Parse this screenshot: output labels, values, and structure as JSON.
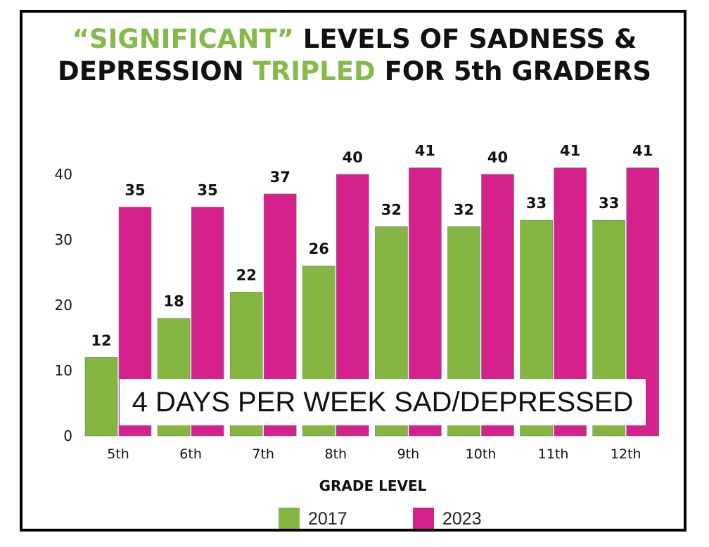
{
  "title": {
    "line1": [
      {
        "text": "“SIGNIFICANT”",
        "highlight": true
      },
      {
        "text": " LEVELS OF SADNESS &",
        "highlight": false
      }
    ],
    "line2": [
      {
        "text": "DEPRESSION ",
        "highlight": false
      },
      {
        "text": "TRIPLED",
        "highlight": true
      },
      {
        "text": " FOR 5th GRADERS",
        "highlight": false
      }
    ]
  },
  "colors": {
    "series_2017": "#86b642",
    "series_2023": "#d4218c",
    "title_highlight": "#86b94a",
    "text": "#111111"
  },
  "chart_data": {
    "type": "bar",
    "categories": [
      "5th",
      "6th",
      "7th",
      "8th",
      "9th",
      "10th",
      "11th",
      "12th"
    ],
    "series": [
      {
        "name": "2017",
        "values": [
          12,
          18,
          22,
          26,
          32,
          32,
          33,
          33
        ]
      },
      {
        "name": "2023",
        "values": [
          35,
          35,
          37,
          40,
          41,
          40,
          41,
          41
        ]
      }
    ],
    "data_labels": {
      "2017": [
        "12",
        "18",
        "22",
        "26",
        "32",
        "32",
        "33",
        "33"
      ],
      "2023": [
        "35",
        "35",
        "37",
        "40",
        "41",
        "40",
        "41",
        "41"
      ]
    },
    "yticks": [
      0,
      10,
      20,
      30,
      40
    ],
    "ylim": [
      0,
      45
    ],
    "xlabel": "GRADE LEVEL",
    "ylabel": "",
    "annotation": "4 DAYS PER WEEK SAD/DEPRESSED",
    "legend": {
      "position": "bottom",
      "entries": [
        "2017",
        "2023"
      ]
    },
    "grid": false
  }
}
